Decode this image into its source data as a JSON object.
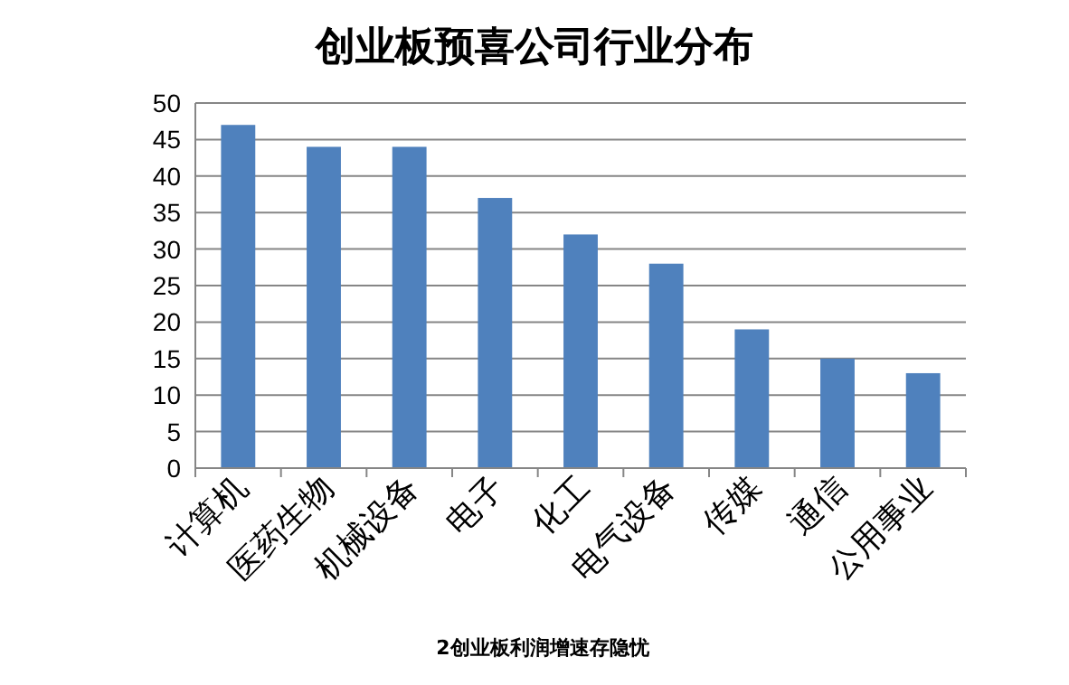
{
  "chart_data": {
    "type": "bar",
    "title": "创业板预喜公司行业分布",
    "categories": [
      "计算机",
      "医药生物",
      "机械设备",
      "电子",
      "化工",
      "电气设备",
      "传媒",
      "通信",
      "公用事业"
    ],
    "values": [
      47,
      44,
      44,
      37,
      32,
      28,
      19,
      15,
      13
    ],
    "color": "#4f81bd",
    "ylim": [
      0,
      50
    ],
    "yticks": [
      0,
      5,
      10,
      15,
      20,
      25,
      30,
      35,
      40,
      45,
      50
    ],
    "grid": "y",
    "annotations": [
      "2创业板利润增速存隐忧"
    ]
  }
}
